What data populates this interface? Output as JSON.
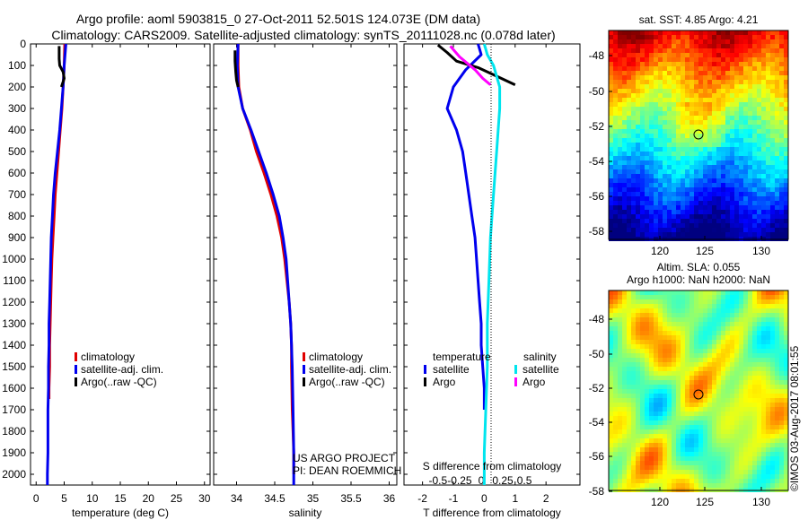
{
  "header": {
    "line1": "Argo profile: aoml 5903815_0 27-Oct-2011 52.501S 124.073E (DM data)",
    "line2": "Climatology: CARS2009. Satellite-adjusted climatology: synTS_20111028.nc (0.078d later)"
  },
  "colors": {
    "climatology": "#e00000",
    "satellite": "#0000ee",
    "argo": "#000000",
    "satellite_s": "#00e5ee",
    "argo_s": "#ff00ff"
  },
  "legend_profiles": {
    "climatology": "climatology",
    "satellite": "satellite-adj. clim.",
    "argo": "Argo(..raw -QC)"
  },
  "legend_diff": {
    "temp_head": "temperature",
    "sal_head": "salinity",
    "satellite": "satellite",
    "argo": "Argo"
  },
  "credits": {
    "line1": "US ARGO PROJECT",
    "line2": "PI: DEAN ROEMMICH"
  },
  "maps": {
    "top_title": "sat. SST: 4.85 Argo: 4.21",
    "bottom_title1": "Altim. SLA: 0.055",
    "bottom_title2": "Argo h1000: NaN h2000: NaN",
    "lat_ticks": [
      "-48",
      "-50",
      "-52",
      "-54",
      "-56",
      "-58"
    ],
    "lon_ticks": [
      "120",
      "125",
      "130"
    ],
    "watermark": "©IMOS 03-Aug-2017 08:01:55"
  },
  "chart_data": [
    {
      "type": "line",
      "xlabel": "temperature (deg C)",
      "xlim": [
        -1,
        31
      ],
      "xticks": [
        0,
        5,
        10,
        15,
        20,
        25,
        30
      ],
      "ylim": [
        2050,
        0
      ],
      "yticks": [
        0,
        100,
        200,
        300,
        400,
        500,
        600,
        700,
        800,
        900,
        1000,
        1100,
        1200,
        1300,
        1400,
        1500,
        1600,
        1700,
        1800,
        1900,
        2000
      ],
      "series": [
        {
          "name": "climatology",
          "color": "#e00000",
          "x": [
            5.1,
            5.0,
            4.8,
            4.6,
            4.3,
            4.0,
            3.7,
            3.4,
            3.2,
            3.0,
            2.8,
            2.7,
            2.6,
            2.5,
            2.4,
            2.4,
            2.3,
            2.3
          ],
          "y": [
            0,
            100,
            200,
            300,
            400,
            500,
            600,
            700,
            800,
            900,
            1000,
            1100,
            1200,
            1300,
            1400,
            1500,
            1600,
            1650
          ]
        },
        {
          "name": "satellite-adj. clim.",
          "color": "#0000ee",
          "x": [
            5.3,
            5.0,
            4.8,
            4.5,
            4.2,
            3.8,
            3.4,
            3.1,
            2.9,
            2.7,
            2.6,
            2.5,
            2.4,
            2.3,
            2.3,
            2.2,
            2.2,
            2.1,
            2.1,
            2.1,
            2.0,
            2.0
          ],
          "y": [
            0,
            100,
            200,
            300,
            400,
            500,
            600,
            700,
            800,
            900,
            1000,
            1100,
            1200,
            1300,
            1400,
            1500,
            1600,
            1700,
            1800,
            1900,
            2000,
            2050
          ]
        },
        {
          "name": "Argo(..raw -QC)",
          "color": "#000000",
          "x": [
            4.1,
            4.1,
            4.1,
            4.2,
            4.8,
            5.0,
            4.5
          ],
          "y": [
            10,
            40,
            70,
            100,
            130,
            160,
            200
          ]
        }
      ]
    },
    {
      "type": "line",
      "xlabel": "salinity",
      "xlim": [
        33.7,
        36.1
      ],
      "xticks": [
        34,
        34.5,
        35,
        35.5,
        36
      ],
      "ylim": [
        2050,
        0
      ],
      "series": [
        {
          "name": "climatology",
          "color": "#e00000",
          "x": [
            34.02,
            34.02,
            34.03,
            34.08,
            34.18,
            34.26,
            34.36,
            34.45,
            34.53,
            34.59,
            34.63,
            34.66,
            34.69,
            34.71,
            34.72,
            34.72,
            34.73,
            34.74,
            34.75,
            34.75
          ],
          "y": [
            0,
            100,
            200,
            300,
            400,
            500,
            600,
            700,
            800,
            900,
            1000,
            1100,
            1200,
            1300,
            1400,
            1500,
            1700,
            1800,
            1900,
            2000
          ]
        },
        {
          "name": "satellite-adj. clim.",
          "color": "#0000ee",
          "x": [
            34.02,
            34.01,
            34.02,
            34.08,
            34.19,
            34.29,
            34.39,
            34.48,
            34.56,
            34.61,
            34.65,
            34.67,
            34.69,
            34.71,
            34.72,
            34.73,
            34.74,
            34.75,
            34.75
          ],
          "y": [
            0,
            100,
            200,
            300,
            400,
            500,
            600,
            700,
            800,
            900,
            1000,
            1100,
            1200,
            1300,
            1400,
            1500,
            1700,
            1900,
            2050
          ]
        },
        {
          "name": "Argo(..raw -QC)",
          "color": "#000000",
          "x": [
            33.98,
            33.98,
            33.99,
            34.0,
            34.02
          ],
          "y": [
            30,
            80,
            130,
            170,
            200
          ]
        }
      ]
    },
    {
      "type": "line",
      "xlabel": "T difference from climatology",
      "top_xlabel": "S difference from climatology",
      "xlim": [
        -2.6,
        3.1
      ],
      "xticks": [
        -2,
        -1,
        0,
        1,
        2
      ],
      "top_xticks_pos": [
        -1.5,
        -0.8,
        -0.1,
        0.6,
        1.3
      ],
      "top_xticks_labels": [
        "-0.5",
        "-0.25",
        "0",
        "0.25",
        "0.5"
      ],
      "ylim": [
        2050,
        0
      ],
      "series": [
        {
          "name": "temperature satellite",
          "color": "#0000ee",
          "x": [
            -0.2,
            -0.1,
            -0.6,
            -1.0,
            -1.2,
            -0.9,
            -0.7,
            -0.6,
            -0.5,
            -0.4,
            -0.3,
            -0.25,
            -0.2,
            -0.15,
            -0.1,
            -0.1,
            -0.05,
            0.0,
            0.0
          ],
          "y": [
            0,
            50,
            120,
            200,
            300,
            400,
            500,
            600,
            700,
            800,
            900,
            1000,
            1100,
            1200,
            1300,
            1400,
            1500,
            1600,
            1700
          ]
        },
        {
          "name": "temperature Argo",
          "color": "#000000",
          "x": [
            -1.5,
            -1.2,
            -0.9,
            -0.2,
            0.4,
            1.0
          ],
          "y": [
            5,
            40,
            80,
            110,
            150,
            190
          ]
        },
        {
          "name": "salinity satellite",
          "color": "#00e5ee",
          "x": [
            0.0,
            0.1,
            0.3,
            0.5,
            0.5,
            0.4,
            0.3,
            0.2,
            0.15,
            0.1,
            0.1,
            0.05,
            0.0,
            0.0
          ],
          "y": [
            0,
            50,
            100,
            200,
            300,
            500,
            700,
            900,
            1100,
            1300,
            1500,
            1700,
            1900,
            2050
          ]
        },
        {
          "name": "salinity Argo",
          "color": "#ff00ff",
          "x": [
            -1.1,
            -0.8,
            -0.3,
            -0.05,
            0.2
          ],
          "y": [
            10,
            60,
            120,
            160,
            190
          ]
        }
      ]
    }
  ]
}
